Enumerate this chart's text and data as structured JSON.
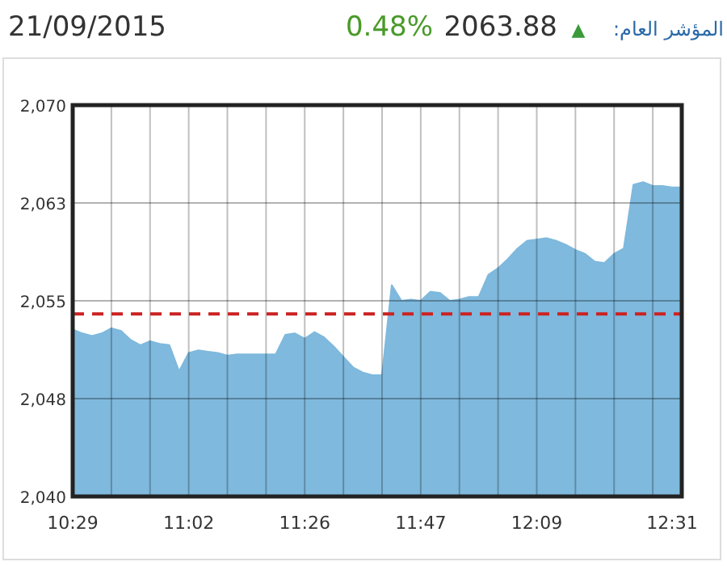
{
  "chart_data": {
    "type": "area",
    "annotations": [
      "21/09/2015",
      "0.48%",
      "2063.88",
      "▲",
      "المؤشر العام:"
    ],
    "categories": [
      "10:29",
      null,
      null,
      null,
      null,
      null,
      null,
      null,
      null,
      null,
      null,
      null,
      "11:02",
      null,
      null,
      null,
      null,
      null,
      null,
      null,
      null,
      null,
      null,
      null,
      "11:26",
      null,
      null,
      null,
      null,
      null,
      null,
      null,
      null,
      null,
      null,
      null,
      "11:47",
      null,
      null,
      null,
      null,
      null,
      null,
      null,
      null,
      null,
      null,
      null,
      "12:09",
      null,
      null,
      null,
      null,
      null,
      null,
      null,
      null,
      null,
      null,
      null,
      null,
      null,
      "12:31",
      null
    ],
    "series": [
      {
        "color": "#7fb9dd",
        "values": [
          2052.8,
          2052.5,
          2052.3,
          2052.5,
          2052.9,
          2052.7,
          2052.0,
          2051.6,
          2051.9,
          2051.7,
          2051.6,
          2049.6,
          2051.0,
          2051.2,
          2051.1,
          2051.0,
          2050.8,
          2050.9,
          2050.9,
          2050.9,
          2050.9,
          2050.9,
          2052.4,
          2052.5,
          2052.1,
          2052.6,
          2052.2,
          2051.5,
          2050.7,
          2049.9,
          2049.5,
          2049.3,
          2049.3,
          2056.2,
          2055.0,
          2055.1,
          2055.0,
          2055.7,
          2055.6,
          2055.0,
          2055.1,
          2055.3,
          2055.3,
          2057.0,
          2057.5,
          2058.2,
          2059.0,
          2059.6,
          2059.7,
          2059.8,
          2059.6,
          2059.3,
          2058.9,
          2058.6,
          2058.0,
          2057.9,
          2058.6,
          2059.0,
          2063.9,
          2064.1,
          2063.8,
          2063.8,
          2063.7,
          2063.7
        ]
      }
    ],
    "ylim": [
      2040,
      2070
    ],
    "yticks": [
      {
        "value": 2040,
        "label": "2,040"
      },
      {
        "value": 2047.5,
        "label": "2,048"
      },
      {
        "value": 2055,
        "label": "2,055"
      },
      {
        "value": 2062.5,
        "label": "2,063"
      },
      {
        "value": 2070,
        "label": "2,070"
      }
    ],
    "ref_lines": [
      {
        "axis": "y",
        "value": 2054,
        "color": "#cc2222",
        "line_style": "dashed"
      }
    ],
    "grid": true
  }
}
